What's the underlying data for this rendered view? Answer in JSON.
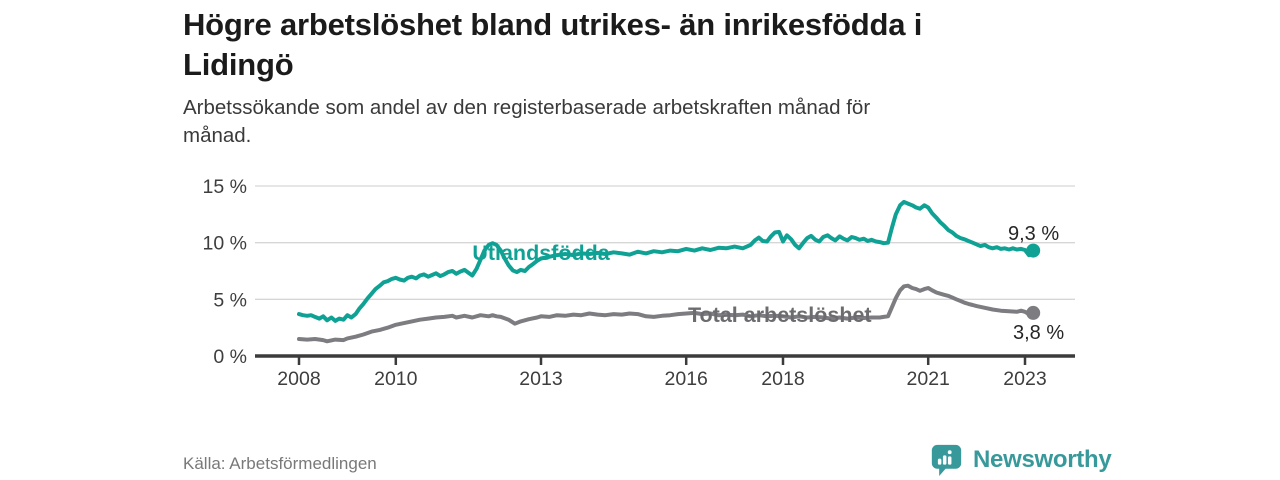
{
  "header": {
    "title_line1": "Högre arbetslöshet bland utrikes- än inrikesfödda i",
    "title_line2": "Lidingö",
    "subtitle_line1": "Arbetssökande som andel av den registerbaserade arbetskraften månad för",
    "subtitle_line2": "månad."
  },
  "footer": {
    "source": "Källa: Arbetsförmedlingen",
    "brand": "Newsworthy"
  },
  "icons": {
    "brand": "bar-chart-speech-bubble-icon"
  },
  "colors": {
    "teal_line": "#10a195",
    "gray_line": "#7d7d81",
    "gray_label": "#6c6c70",
    "brand_teal": "#38999b",
    "axis": "#3b3b3b",
    "gridline": "#d6d6d6"
  },
  "chart_data": {
    "type": "line",
    "title": "Högre arbetslöshet bland utrikes- än inrikesfödda i Lidingö",
    "subtitle": "Arbetssökande som andel av den registerbaserade arbetskraften månad för månad.",
    "source": "Källa: Arbetsförmedlingen",
    "grid": "horizontal",
    "legend_position": "inline-labels",
    "xlabel": "",
    "ylabel": "",
    "xlim": [
      2007.1,
      2024.0
    ],
    "ylim": [
      0,
      16.4
    ],
    "x_ticks": [
      2008,
      2010,
      2013,
      2016,
      2018,
      2021,
      2023
    ],
    "x_tick_labels": [
      "2008",
      "2010",
      "2013",
      "2016",
      "2018",
      "2021",
      "2023"
    ],
    "y_ticks": [
      0,
      5,
      10,
      15
    ],
    "y_tick_labels": [
      "0 %",
      "5 %",
      "10 %",
      "15 %"
    ],
    "series": [
      {
        "name": "Utlandsfödda",
        "color": "#10a195",
        "label_color": "#10a195",
        "end_label": "9,3 %",
        "end_value": 9.3,
        "points": [
          [
            2008.0,
            3.7
          ],
          [
            2008.08,
            3.6
          ],
          [
            2008.17,
            3.55
          ],
          [
            2008.25,
            3.6
          ],
          [
            2008.33,
            3.45
          ],
          [
            2008.42,
            3.3
          ],
          [
            2008.5,
            3.5
          ],
          [
            2008.58,
            3.15
          ],
          [
            2008.67,
            3.4
          ],
          [
            2008.75,
            3.1
          ],
          [
            2008.83,
            3.3
          ],
          [
            2008.92,
            3.2
          ],
          [
            2009.0,
            3.6
          ],
          [
            2009.08,
            3.4
          ],
          [
            2009.17,
            3.7
          ],
          [
            2009.25,
            4.2
          ],
          [
            2009.33,
            4.6
          ],
          [
            2009.42,
            5.1
          ],
          [
            2009.5,
            5.5
          ],
          [
            2009.58,
            5.9
          ],
          [
            2009.67,
            6.2
          ],
          [
            2009.75,
            6.5
          ],
          [
            2009.83,
            6.6
          ],
          [
            2009.92,
            6.8
          ],
          [
            2010.0,
            6.9
          ],
          [
            2010.08,
            6.75
          ],
          [
            2010.17,
            6.65
          ],
          [
            2010.25,
            6.9
          ],
          [
            2010.33,
            7.0
          ],
          [
            2010.42,
            6.85
          ],
          [
            2010.5,
            7.1
          ],
          [
            2010.58,
            7.2
          ],
          [
            2010.67,
            7.0
          ],
          [
            2010.75,
            7.15
          ],
          [
            2010.83,
            7.3
          ],
          [
            2010.92,
            7.05
          ],
          [
            2011.0,
            7.2
          ],
          [
            2011.08,
            7.4
          ],
          [
            2011.17,
            7.5
          ],
          [
            2011.25,
            7.25
          ],
          [
            2011.33,
            7.45
          ],
          [
            2011.42,
            7.6
          ],
          [
            2011.5,
            7.35
          ],
          [
            2011.58,
            7.1
          ],
          [
            2011.67,
            7.7
          ],
          [
            2011.75,
            8.5
          ],
          [
            2011.83,
            9.3
          ],
          [
            2011.92,
            9.8
          ],
          [
            2012.0,
            9.95
          ],
          [
            2012.08,
            9.8
          ],
          [
            2012.17,
            9.3
          ],
          [
            2012.25,
            8.6
          ],
          [
            2012.33,
            8.0
          ],
          [
            2012.42,
            7.55
          ],
          [
            2012.5,
            7.4
          ],
          [
            2012.58,
            7.6
          ],
          [
            2012.67,
            7.5
          ],
          [
            2012.75,
            7.85
          ],
          [
            2012.83,
            8.1
          ],
          [
            2012.92,
            8.4
          ],
          [
            2013.0,
            8.6
          ],
          [
            2013.17,
            8.75
          ],
          [
            2013.33,
            8.9
          ],
          [
            2013.5,
            9.0
          ],
          [
            2013.67,
            8.9
          ],
          [
            2013.83,
            9.05
          ],
          [
            2014.0,
            9.0
          ],
          [
            2014.17,
            9.1
          ],
          [
            2014.33,
            9.0
          ],
          [
            2014.5,
            9.15
          ],
          [
            2014.67,
            9.05
          ],
          [
            2014.83,
            8.95
          ],
          [
            2015.0,
            9.2
          ],
          [
            2015.17,
            9.05
          ],
          [
            2015.33,
            9.25
          ],
          [
            2015.5,
            9.15
          ],
          [
            2015.67,
            9.3
          ],
          [
            2015.83,
            9.25
          ],
          [
            2016.0,
            9.45
          ],
          [
            2016.17,
            9.3
          ],
          [
            2016.33,
            9.5
          ],
          [
            2016.5,
            9.35
          ],
          [
            2016.67,
            9.55
          ],
          [
            2016.83,
            9.5
          ],
          [
            2017.0,
            9.65
          ],
          [
            2017.17,
            9.5
          ],
          [
            2017.33,
            9.8
          ],
          [
            2017.42,
            10.2
          ],
          [
            2017.5,
            10.45
          ],
          [
            2017.58,
            10.15
          ],
          [
            2017.67,
            10.1
          ],
          [
            2017.75,
            10.55
          ],
          [
            2017.83,
            10.9
          ],
          [
            2017.92,
            10.95
          ],
          [
            2018.0,
            10.1
          ],
          [
            2018.08,
            10.65
          ],
          [
            2018.17,
            10.3
          ],
          [
            2018.25,
            9.8
          ],
          [
            2018.33,
            9.5
          ],
          [
            2018.42,
            10.0
          ],
          [
            2018.5,
            10.4
          ],
          [
            2018.58,
            10.6
          ],
          [
            2018.67,
            10.25
          ],
          [
            2018.75,
            10.1
          ],
          [
            2018.83,
            10.5
          ],
          [
            2018.92,
            10.65
          ],
          [
            2019.0,
            10.4
          ],
          [
            2019.08,
            10.2
          ],
          [
            2019.17,
            10.55
          ],
          [
            2019.25,
            10.35
          ],
          [
            2019.33,
            10.2
          ],
          [
            2019.42,
            10.5
          ],
          [
            2019.5,
            10.4
          ],
          [
            2019.58,
            10.25
          ],
          [
            2019.67,
            10.35
          ],
          [
            2019.75,
            10.15
          ],
          [
            2019.83,
            10.25
          ],
          [
            2019.92,
            10.1
          ],
          [
            2020.0,
            10.05
          ],
          [
            2020.08,
            9.95
          ],
          [
            2020.17,
            10.0
          ],
          [
            2020.25,
            11.3
          ],
          [
            2020.33,
            12.5
          ],
          [
            2020.42,
            13.3
          ],
          [
            2020.5,
            13.6
          ],
          [
            2020.58,
            13.45
          ],
          [
            2020.67,
            13.3
          ],
          [
            2020.75,
            13.1
          ],
          [
            2020.83,
            13.0
          ],
          [
            2020.92,
            13.3
          ],
          [
            2021.0,
            13.1
          ],
          [
            2021.08,
            12.6
          ],
          [
            2021.17,
            12.2
          ],
          [
            2021.25,
            11.8
          ],
          [
            2021.33,
            11.5
          ],
          [
            2021.42,
            11.1
          ],
          [
            2021.5,
            10.9
          ],
          [
            2021.58,
            10.6
          ],
          [
            2021.67,
            10.4
          ],
          [
            2021.75,
            10.3
          ],
          [
            2021.83,
            10.15
          ],
          [
            2021.92,
            10.0
          ],
          [
            2022.0,
            9.85
          ],
          [
            2022.08,
            9.7
          ],
          [
            2022.17,
            9.8
          ],
          [
            2022.25,
            9.6
          ],
          [
            2022.33,
            9.5
          ],
          [
            2022.42,
            9.6
          ],
          [
            2022.5,
            9.45
          ],
          [
            2022.58,
            9.5
          ],
          [
            2022.67,
            9.4
          ],
          [
            2022.75,
            9.5
          ],
          [
            2022.83,
            9.4
          ],
          [
            2022.92,
            9.45
          ],
          [
            2023.0,
            9.35
          ],
          [
            2023.08,
            8.9
          ],
          [
            2023.17,
            9.3
          ]
        ]
      },
      {
        "name": "Total arbetslöshet",
        "color": "#7d7d81",
        "label_color": "#6c6c70",
        "end_label": "3,8 %",
        "end_value": 3.8,
        "points": [
          [
            2008.0,
            1.5
          ],
          [
            2008.17,
            1.45
          ],
          [
            2008.33,
            1.5
          ],
          [
            2008.5,
            1.4
          ],
          [
            2008.58,
            1.3
          ],
          [
            2008.75,
            1.45
          ],
          [
            2008.92,
            1.4
          ],
          [
            2009.0,
            1.55
          ],
          [
            2009.17,
            1.7
          ],
          [
            2009.33,
            1.9
          ],
          [
            2009.5,
            2.15
          ],
          [
            2009.67,
            2.3
          ],
          [
            2009.83,
            2.5
          ],
          [
            2010.0,
            2.75
          ],
          [
            2010.17,
            2.9
          ],
          [
            2010.33,
            3.05
          ],
          [
            2010.5,
            3.2
          ],
          [
            2010.67,
            3.3
          ],
          [
            2010.83,
            3.4
          ],
          [
            2011.0,
            3.45
          ],
          [
            2011.17,
            3.55
          ],
          [
            2011.25,
            3.4
          ],
          [
            2011.42,
            3.55
          ],
          [
            2011.58,
            3.4
          ],
          [
            2011.75,
            3.6
          ],
          [
            2011.92,
            3.5
          ],
          [
            2012.0,
            3.6
          ],
          [
            2012.08,
            3.5
          ],
          [
            2012.17,
            3.45
          ],
          [
            2012.33,
            3.2
          ],
          [
            2012.46,
            2.85
          ],
          [
            2012.58,
            3.05
          ],
          [
            2012.75,
            3.25
          ],
          [
            2012.92,
            3.4
          ],
          [
            2013.0,
            3.5
          ],
          [
            2013.17,
            3.45
          ],
          [
            2013.33,
            3.6
          ],
          [
            2013.5,
            3.55
          ],
          [
            2013.67,
            3.65
          ],
          [
            2013.83,
            3.6
          ],
          [
            2014.0,
            3.75
          ],
          [
            2014.17,
            3.65
          ],
          [
            2014.33,
            3.6
          ],
          [
            2014.5,
            3.7
          ],
          [
            2014.67,
            3.65
          ],
          [
            2014.83,
            3.75
          ],
          [
            2015.0,
            3.7
          ],
          [
            2015.17,
            3.5
          ],
          [
            2015.33,
            3.45
          ],
          [
            2015.5,
            3.55
          ],
          [
            2015.67,
            3.6
          ],
          [
            2015.83,
            3.7
          ],
          [
            2016.0,
            3.75
          ],
          [
            2016.17,
            3.8
          ],
          [
            2016.33,
            3.7
          ],
          [
            2016.5,
            3.75
          ],
          [
            2016.67,
            3.6
          ],
          [
            2016.83,
            3.65
          ],
          [
            2017.0,
            3.6
          ],
          [
            2017.17,
            3.65
          ],
          [
            2017.33,
            3.5
          ],
          [
            2017.5,
            3.6
          ],
          [
            2017.67,
            3.5
          ],
          [
            2017.83,
            3.55
          ],
          [
            2018.0,
            3.5
          ],
          [
            2018.17,
            3.4
          ],
          [
            2018.33,
            3.5
          ],
          [
            2018.5,
            3.4
          ],
          [
            2018.67,
            3.45
          ],
          [
            2018.83,
            3.4
          ],
          [
            2019.0,
            3.3
          ],
          [
            2019.17,
            3.4
          ],
          [
            2019.33,
            3.3
          ],
          [
            2019.5,
            3.4
          ],
          [
            2019.67,
            3.35
          ],
          [
            2019.83,
            3.4
          ],
          [
            2020.0,
            3.4
          ],
          [
            2020.08,
            3.45
          ],
          [
            2020.17,
            3.5
          ],
          [
            2020.25,
            4.3
          ],
          [
            2020.33,
            5.1
          ],
          [
            2020.42,
            5.8
          ],
          [
            2020.5,
            6.15
          ],
          [
            2020.58,
            6.2
          ],
          [
            2020.67,
            6.0
          ],
          [
            2020.75,
            5.9
          ],
          [
            2020.83,
            5.75
          ],
          [
            2020.92,
            5.9
          ],
          [
            2021.0,
            6.0
          ],
          [
            2021.08,
            5.8
          ],
          [
            2021.17,
            5.6
          ],
          [
            2021.25,
            5.5
          ],
          [
            2021.33,
            5.4
          ],
          [
            2021.42,
            5.3
          ],
          [
            2021.5,
            5.15
          ],
          [
            2021.58,
            5.0
          ],
          [
            2021.67,
            4.85
          ],
          [
            2021.75,
            4.7
          ],
          [
            2021.83,
            4.6
          ],
          [
            2021.92,
            4.5
          ],
          [
            2022.0,
            4.4
          ],
          [
            2022.17,
            4.25
          ],
          [
            2022.33,
            4.1
          ],
          [
            2022.5,
            4.0
          ],
          [
            2022.67,
            3.95
          ],
          [
            2022.83,
            3.9
          ],
          [
            2022.92,
            4.0
          ],
          [
            2023.0,
            3.9
          ],
          [
            2023.08,
            3.7
          ],
          [
            2023.17,
            3.8
          ]
        ]
      }
    ]
  }
}
